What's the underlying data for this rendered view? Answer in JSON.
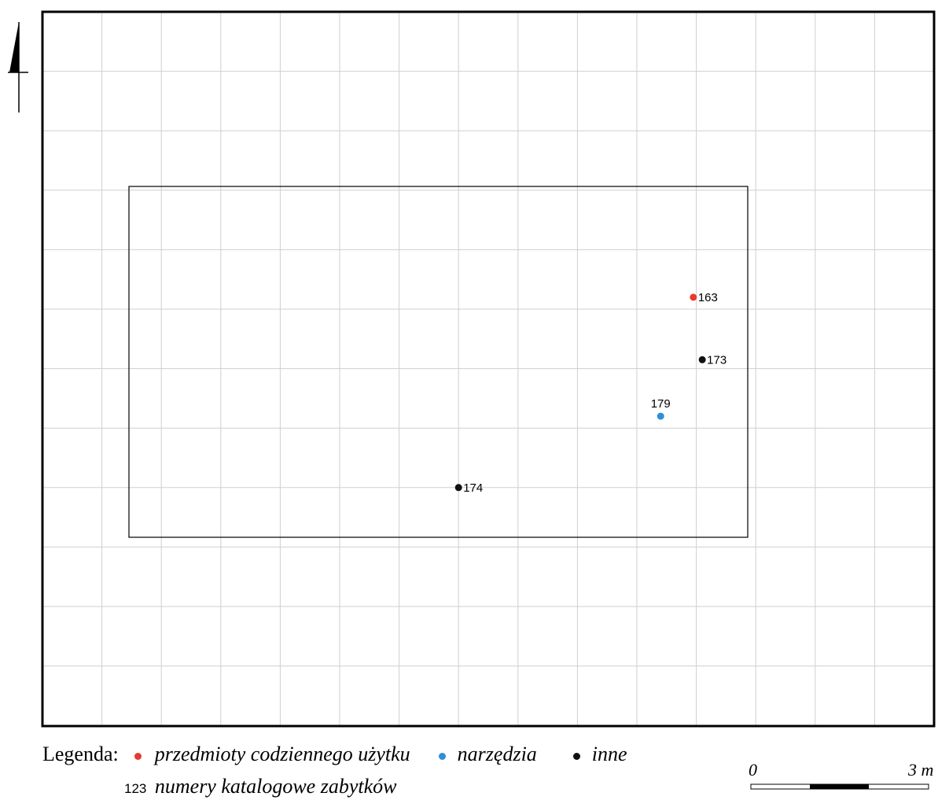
{
  "legend": {
    "title": "Legenda:",
    "categories": [
      {
        "key": "daily",
        "label": "przedmioty codziennego użytku",
        "color": "#e53a2f"
      },
      {
        "key": "tools",
        "label": "narzędzia",
        "color": "#2e8fd6"
      },
      {
        "key": "other",
        "label": "inne",
        "color": "#111111"
      }
    ],
    "number_sample": "123",
    "number_label": "numery katalogowe zabytków"
  },
  "scale_bar": {
    "start_label": "0",
    "end_label": "3 m"
  },
  "finds": [
    {
      "number": "163",
      "category": "daily",
      "col": 10.95,
      "row": 4.8
    },
    {
      "number": "173",
      "category": "other",
      "col": 11.1,
      "row": 5.85
    },
    {
      "number": "179",
      "category": "tools",
      "col": 10.4,
      "row": 6.8
    },
    {
      "number": "174",
      "category": "other",
      "col": 7.0,
      "row": 8.0
    }
  ],
  "colors": {
    "grid": "#cfcfcf",
    "frame": "#000000"
  }
}
